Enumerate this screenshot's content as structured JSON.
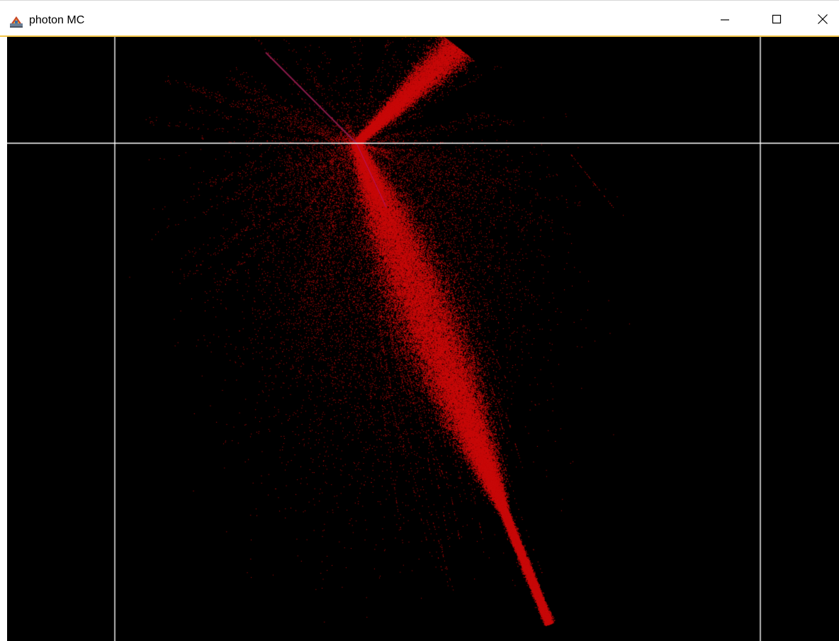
{
  "window": {
    "title": "photon MC",
    "icon": "java-app-icon",
    "controls": {
      "minimize_icon": "minimize-icon",
      "maximize_icon": "maximize-icon",
      "close_icon": "close-icon"
    }
  },
  "canvas": {
    "background_color": "#000000",
    "grid_line_color": "#ffffff",
    "photon_color": "#c80a0a",
    "source_beam_color": "#8a1a4a"
  }
}
